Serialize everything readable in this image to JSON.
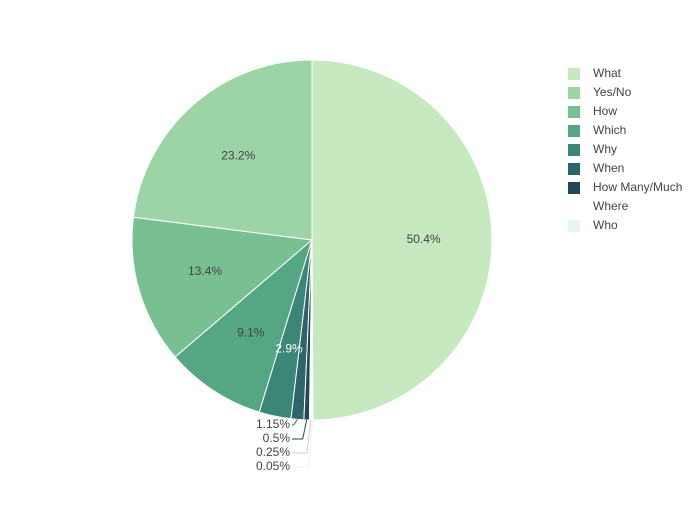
{
  "chart_data": {
    "type": "pie",
    "categories": [
      "What",
      "Yes/No",
      "How",
      "Which",
      "Why",
      "When",
      "How Many/Much",
      "Where",
      "Who"
    ],
    "values": [
      50.4,
      23.2,
      13.4,
      9.1,
      2.9,
      1.15,
      0.5,
      0.25,
      0.05
    ],
    "value_labels": [
      "50.4%",
      "23.2%",
      "13.4%",
      "9.1%",
      "2.9%",
      "1.15%",
      "0.5%",
      "0.25%",
      "0.05%"
    ],
    "colors": [
      "#c7e9c0",
      "#9dd4a6",
      "#78bf92",
      "#55a683",
      "#3c8677",
      "#2c6669",
      "#21485a",
      "#ffffff",
      "#e8f5ee"
    ],
    "legend": "top-right"
  }
}
